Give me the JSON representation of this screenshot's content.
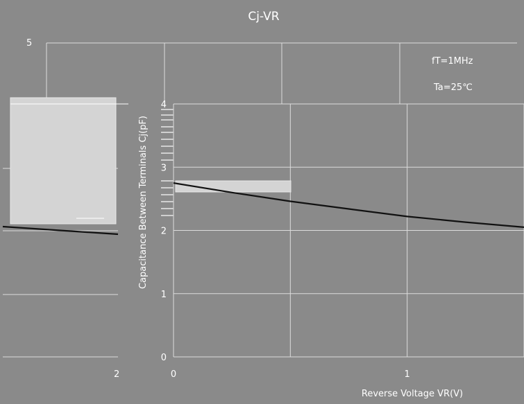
{
  "chart_data": {
    "type": "line",
    "title": "Cj-VR",
    "xlabel": "Reverse Voltage  VR(V)",
    "ylabel": "Capacitance Between Terminals Cj(pF)",
    "annotations": [
      "fT=1MHz",
      "Ta=25℃"
    ],
    "x_tick_labels": [
      "0",
      "1"
    ],
    "y_tick_labels": [
      "0",
      "1",
      "2",
      "3",
      "4"
    ],
    "xlim": [
      0,
      1.5
    ],
    "ylim": [
      0,
      4
    ],
    "grid": true,
    "series": [
      {
        "x": [
          0,
          0.25,
          0.5,
          0.75,
          1.0,
          1.25,
          1.5
        ],
        "values": [
          2.75,
          2.6,
          2.46,
          2.34,
          2.22,
          2.13,
          2.05
        ]
      }
    ],
    "background_fragment": {
      "y_tick_labels": [
        "5"
      ],
      "x_tick_labels": [
        "2"
      ],
      "series_values": [
        2.05,
        1.94
      ]
    }
  },
  "colors": {
    "background": "#8a8a8a",
    "grid": "#dcdcdc",
    "line": "#111111",
    "text": "#ffffff"
  }
}
